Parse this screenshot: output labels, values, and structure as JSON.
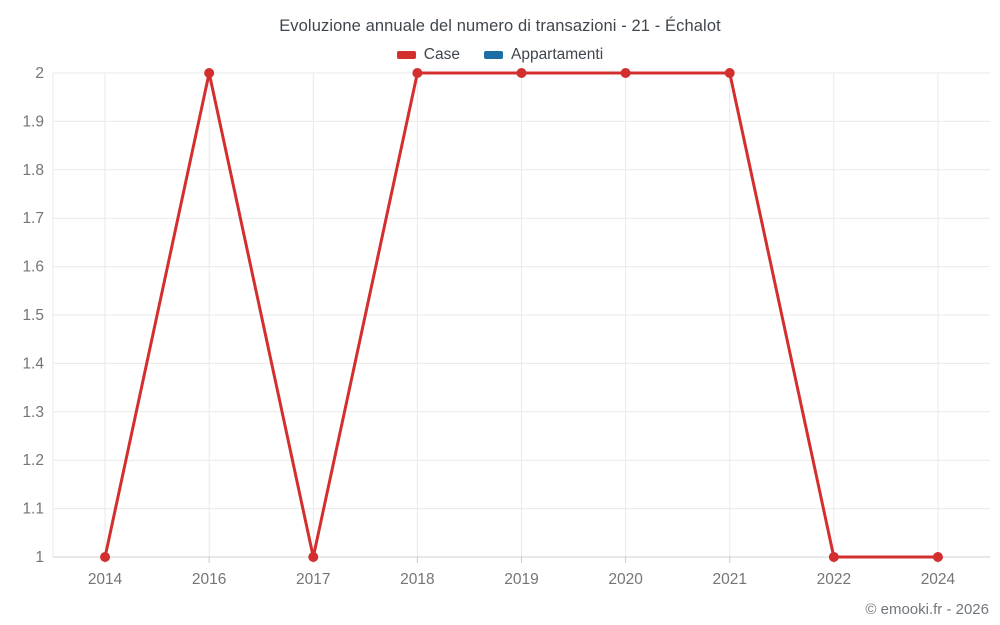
{
  "header": {
    "title": "Evoluzione annuale del numero di transazioni - 21 - Échalot"
  },
  "footer": {
    "credit": "© emooki.fr - 2026"
  },
  "colors": {
    "case_red": "#d32f2f",
    "appartamenti_blue": "#1c6ea4",
    "gridline": "#e9e9e9",
    "baseline": "#ced2d6",
    "tick_mark": "#c8c8c8",
    "tick_label": "#757575",
    "title_text": "#3f464e"
  },
  "chart_data": {
    "type": "line",
    "title": "Evoluzione annuale del numero di transazioni - 21 - Échalot",
    "xlabel": "",
    "ylabel": "",
    "categories": [
      "2014",
      "2016",
      "2017",
      "2018",
      "2019",
      "2020",
      "2021",
      "2022",
      "2024"
    ],
    "series": [
      {
        "name": "Case",
        "color": "#d32f2f",
        "values": [
          1,
          2,
          1,
          2,
          2,
          2,
          2,
          1,
          1
        ]
      },
      {
        "name": "Appartamenti",
        "color": "#1c6ea4",
        "values": []
      }
    ],
    "ylim": [
      1,
      2
    ],
    "y_ticks": [
      "1",
      "1.1",
      "1.2",
      "1.3",
      "1.4",
      "1.5",
      "1.6",
      "1.7",
      "1.8",
      "1.9",
      "2"
    ],
    "grid": true,
    "legend_position": "top",
    "marker_radius": 5,
    "line_width": 3
  }
}
